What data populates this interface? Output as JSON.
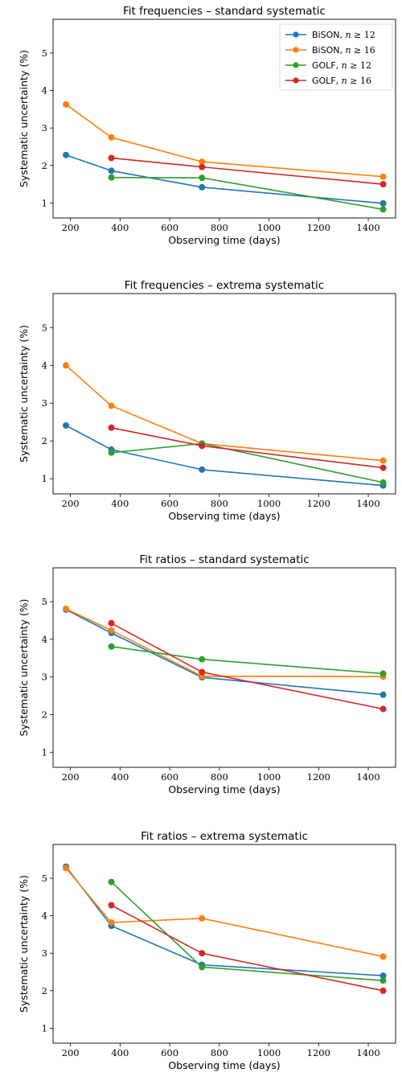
{
  "colors": {
    "bison_12": "#1f77b4",
    "bison_16": "#ff7f0e",
    "golf_12": "#2ca02c",
    "golf_16": "#d62728"
  },
  "chart_data": [
    {
      "type": "line",
      "title": "Fit frequencies – standard systematic",
      "xlabel": "Observing time (days)",
      "ylabel": "Systematic uncertainty (%)",
      "xlim": [
        130,
        1510
      ],
      "ylim": [
        0.6,
        5.9
      ],
      "xticks": [
        200,
        400,
        600,
        800,
        1000,
        1200,
        1400
      ],
      "yticks": [
        1,
        2,
        3,
        4,
        5
      ],
      "legend": "top-right",
      "series": [
        {
          "name": "BiSON, n ≥ 12",
          "color_key": "bison_12",
          "x": [
            182,
            365,
            730,
            1460
          ],
          "y": [
            2.28,
            1.86,
            1.42,
            0.99
          ]
        },
        {
          "name": "BiSON, n ≥ 16",
          "color_key": "bison_16",
          "x": [
            182,
            365,
            730,
            1460
          ],
          "y": [
            3.63,
            2.75,
            2.1,
            1.7
          ]
        },
        {
          "name": "GOLF, n ≥ 12",
          "color_key": "golf_12",
          "x": [
            365,
            730,
            1460
          ],
          "y": [
            1.68,
            1.67,
            0.83
          ]
        },
        {
          "name": "GOLF, n ≥ 16",
          "color_key": "golf_16",
          "x": [
            365,
            730,
            1460
          ],
          "y": [
            2.2,
            1.96,
            1.5
          ]
        }
      ]
    },
    {
      "type": "line",
      "title": "Fit frequencies – extrema systematic",
      "xlabel": "Observing time (days)",
      "ylabel": "Systematic uncertainty (%)",
      "xlim": [
        130,
        1510
      ],
      "ylim": [
        0.6,
        5.9
      ],
      "xticks": [
        200,
        400,
        600,
        800,
        1000,
        1200,
        1400
      ],
      "yticks": [
        1,
        2,
        3,
        4,
        5
      ],
      "series": [
        {
          "name": "BiSON, n ≥ 12",
          "color_key": "bison_12",
          "x": [
            182,
            365,
            730,
            1460
          ],
          "y": [
            2.41,
            1.77,
            1.24,
            0.82
          ]
        },
        {
          "name": "BiSON, n ≥ 16",
          "color_key": "bison_16",
          "x": [
            182,
            365,
            730,
            1460
          ],
          "y": [
            4.0,
            2.93,
            1.93,
            1.48
          ]
        },
        {
          "name": "GOLF, n ≥ 12",
          "color_key": "golf_12",
          "x": [
            365,
            730,
            1460
          ],
          "y": [
            1.69,
            1.93,
            0.9
          ]
        },
        {
          "name": "GOLF, n ≥ 16",
          "color_key": "golf_16",
          "x": [
            365,
            730,
            1460
          ],
          "y": [
            2.35,
            1.87,
            1.29
          ]
        }
      ]
    },
    {
      "type": "line",
      "title": "Fit ratios – standard systematic",
      "xlabel": "Observing time (days)",
      "ylabel": "Systematic uncertainty (%)",
      "xlim": [
        130,
        1510
      ],
      "ylim": [
        0.6,
        5.9
      ],
      "xticks": [
        200,
        400,
        600,
        800,
        1000,
        1200,
        1400
      ],
      "yticks": [
        1,
        2,
        3,
        4,
        5
      ],
      "series": [
        {
          "name": "BiSON, n ≥ 12",
          "color_key": "bison_12",
          "x": [
            182,
            365,
            730,
            1460
          ],
          "y": [
            4.79,
            4.17,
            2.99,
            2.53
          ]
        },
        {
          "name": "BiSON, n ≥ 16",
          "color_key": "bison_16",
          "x": [
            182,
            365,
            730,
            1460
          ],
          "y": [
            4.81,
            4.24,
            3.02,
            3.01
          ]
        },
        {
          "name": "GOLF, n ≥ 12",
          "color_key": "golf_12",
          "x": [
            365,
            730,
            1460
          ],
          "y": [
            3.81,
            3.47,
            3.09
          ]
        },
        {
          "name": "GOLF, n ≥ 16",
          "color_key": "golf_16",
          "x": [
            365,
            730,
            1460
          ],
          "y": [
            4.43,
            3.13,
            2.15
          ]
        }
      ]
    },
    {
      "type": "line",
      "title": "Fit ratios – extrema systematic",
      "xlabel": "Observing time (days)",
      "ylabel": "Systematic uncertainty (%)",
      "xlim": [
        130,
        1510
      ],
      "ylim": [
        0.6,
        5.9
      ],
      "xticks": [
        200,
        400,
        600,
        800,
        1000,
        1200,
        1400
      ],
      "yticks": [
        1,
        2,
        3,
        4,
        5
      ],
      "series": [
        {
          "name": "BiSON, n ≥ 12",
          "color_key": "bison_12",
          "x": [
            182,
            365,
            730,
            1460
          ],
          "y": [
            5.31,
            3.73,
            2.69,
            2.4
          ]
        },
        {
          "name": "BiSON, n ≥ 16",
          "color_key": "bison_16",
          "x": [
            182,
            365,
            730,
            1460
          ],
          "y": [
            5.27,
            3.82,
            3.93,
            2.91
          ]
        },
        {
          "name": "GOLF, n ≥ 12",
          "color_key": "golf_12",
          "x": [
            365,
            730,
            1460
          ],
          "y": [
            4.9,
            2.63,
            2.27
          ]
        },
        {
          "name": "GOLF, n ≥ 16",
          "color_key": "golf_16",
          "x": [
            365,
            730,
            1460
          ],
          "y": [
            4.28,
            3.0,
            2.0
          ]
        }
      ]
    }
  ]
}
